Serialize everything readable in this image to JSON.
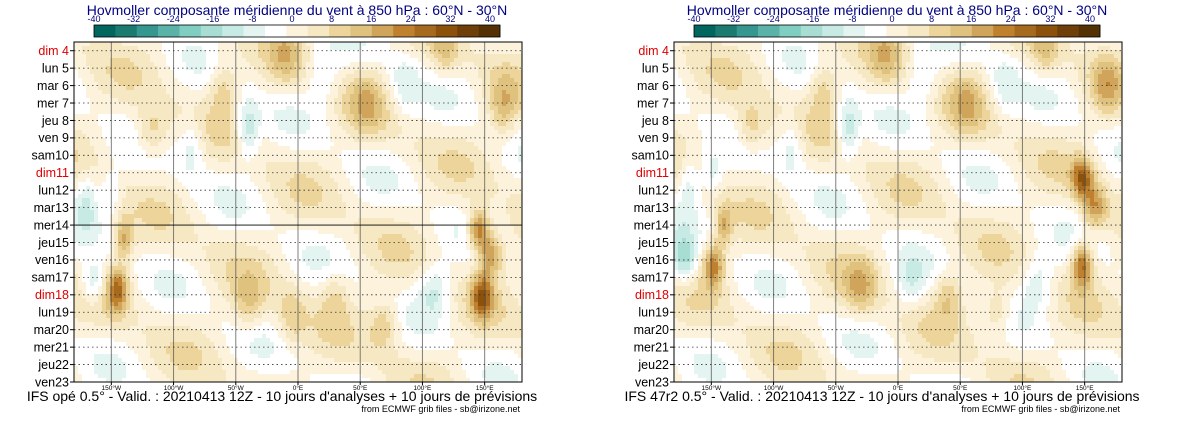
{
  "chart_data": [
    {
      "type": "heatmap",
      "title": "Hovmoller composante méridienne du vent à 850 hPa : 60°N - 30°N",
      "colorbar_ticks": [
        -40,
        -32,
        -24,
        -16,
        -8,
        0,
        8,
        16,
        24,
        32,
        40
      ],
      "colorbar_colors": [
        "#01665e",
        "#1b7b70",
        "#35978f",
        "#5ab2a8",
        "#80cdc1",
        "#a8ddd3",
        "#c7eae5",
        "#e4f4f1",
        "#ffffff",
        "#fdf3dc",
        "#f6e8c3",
        "#ecd49a",
        "#dfc27d",
        "#d0a45a",
        "#bf812d",
        "#a66a1f",
        "#8c510a",
        "#6e3f08",
        "#543005"
      ],
      "y_labels": [
        "dim 4",
        "lun 5",
        "mar 6",
        "mer 7",
        "jeu 8",
        "ven 9",
        "sam10",
        "dim11",
        "lun12",
        "mar13",
        "mer14",
        "jeu15",
        "ven16",
        "sam17",
        "dim18",
        "lun19",
        "mar20",
        "mer21",
        "jeu22",
        "ven23"
      ],
      "y_red_labels": [
        "dim 4",
        "dim11",
        "dim18"
      ],
      "x_ticks": [
        "150°W",
        "100°W",
        "50°W",
        "0°E",
        "50°E",
        "100°E",
        "150°E"
      ],
      "x_tick_lon": [
        -150,
        -100,
        -50,
        0,
        50,
        100,
        150
      ],
      "x_range": [
        -180,
        180
      ],
      "analysis_forecast_split": "mer14",
      "footer": "IFS opé 0.5° - Valid. : 20210413 12Z - 10 jours d'analyses + 10 jours de prévisions",
      "credit": "from ECMWF grib files - sb@irizone.net",
      "features": [
        {
          "type": "blob",
          "lon": -165,
          "day": 17.8,
          "sl": 7,
          "sd": 0.9,
          "v": -14
        },
        {
          "type": "blob",
          "lon": -145,
          "day": 18.2,
          "sl": 6,
          "sd": 0.9,
          "v": 22
        },
        {
          "type": "blob",
          "lon": -140,
          "day": 15.3,
          "sl": 5,
          "sd": 0.8,
          "v": 16
        },
        {
          "type": "blob",
          "lon": -150,
          "day": 12.5,
          "sl": 6,
          "sd": 0.8,
          "v": -8
        },
        {
          "type": "blob",
          "lon": -118,
          "day": 9.2,
          "sl": 9,
          "sd": 1.0,
          "v": 12
        },
        {
          "type": "blob",
          "lon": -85,
          "day": 10.0,
          "sl": 7,
          "sd": 1.2,
          "v": -9
        },
        {
          "type": "blob",
          "lon": -60,
          "day": 6.5,
          "sl": 8,
          "sd": 1.2,
          "v": 10
        },
        {
          "type": "blob",
          "lon": -40,
          "day": 9.0,
          "sl": 6,
          "sd": 1.2,
          "v": -14
        },
        {
          "type": "blob",
          "lon": -10,
          "day": 4.8,
          "sl": 9,
          "sd": 1.3,
          "v": 9
        },
        {
          "type": "blob",
          "lon": 20,
          "day": 6.0,
          "sl": 9,
          "sd": 1.2,
          "v": -7
        },
        {
          "type": "blob",
          "lon": 55,
          "day": 7.5,
          "sl": 10,
          "sd": 1.3,
          "v": 10
        },
        {
          "type": "blob",
          "lon": 85,
          "day": 6.5,
          "sl": 8,
          "sd": 1.2,
          "v": -8
        },
        {
          "type": "blob",
          "lon": 118,
          "day": 4.5,
          "sl": 8,
          "sd": 1.0,
          "v": 10
        },
        {
          "type": "blob",
          "lon": -40,
          "day": 19.0,
          "sl": 9,
          "sd": 1.1,
          "v": 10
        },
        {
          "type": "blob",
          "lon": -5,
          "day": 19.8,
          "sl": 8,
          "sd": 1.1,
          "v": 9
        },
        {
          "type": "blob",
          "lon": 30,
          "day": 18.5,
          "sl": 8,
          "sd": 1.0,
          "v": 8
        },
        {
          "type": "blob",
          "lon": 70,
          "day": 20.2,
          "sl": 9,
          "sd": 1.0,
          "v": 12
        },
        {
          "type": "blob",
          "lon": 110,
          "day": 18.2,
          "sl": 9,
          "sd": 1.1,
          "v": -11
        },
        {
          "type": "blob",
          "lon": 145,
          "day": 14.8,
          "sl": 6,
          "sd": 0.8,
          "v": 26
        },
        {
          "type": "blob",
          "lon": 155,
          "day": 16.2,
          "sl": 7,
          "sd": 0.9,
          "v": 20
        },
        {
          "type": "blob",
          "lon": 148,
          "day": 18.6,
          "sl": 6,
          "sd": 0.9,
          "v": 24
        },
        {
          "type": "blob",
          "lon": 165,
          "day": 7.8,
          "sl": 8,
          "sd": 1.2,
          "v": 12
        },
        {
          "type": "blob",
          "lon": -170,
          "day": 13.0,
          "sl": 6,
          "sd": 1.2,
          "v": -9
        },
        {
          "type": "wave",
          "k": 24,
          "w": -0.9,
          "a": 5
        },
        {
          "type": "wave",
          "k": 17,
          "w": 0.6,
          "a": 3
        }
      ]
    },
    {
      "type": "heatmap",
      "title": "Hovmoller composante méridienne du vent à 850 hPa : 60°N - 30°N",
      "colorbar_ticks": [
        -40,
        -32,
        -24,
        -16,
        -8,
        0,
        8,
        16,
        24,
        32,
        40
      ],
      "colorbar_colors": [
        "#01665e",
        "#1b7b70",
        "#35978f",
        "#5ab2a8",
        "#80cdc1",
        "#a8ddd3",
        "#c7eae5",
        "#e4f4f1",
        "#ffffff",
        "#fdf3dc",
        "#f6e8c3",
        "#ecd49a",
        "#dfc27d",
        "#d0a45a",
        "#bf812d",
        "#a66a1f",
        "#8c510a",
        "#6e3f08",
        "#543005"
      ],
      "y_labels": [
        "dim 4",
        "lun 5",
        "mar 6",
        "mer 7",
        "jeu 8",
        "ven 9",
        "sam10",
        "dim11",
        "lun12",
        "mar13",
        "mer14",
        "jeu15",
        "ven16",
        "sam17",
        "dim18",
        "lun19",
        "mar20",
        "mer21",
        "jeu22",
        "ven23"
      ],
      "y_red_labels": [
        "dim 4",
        "dim11",
        "dim18"
      ],
      "x_ticks": [
        "150°W",
        "100°W",
        "50°W",
        "0°E",
        "50°E",
        "100°E",
        "150°E"
      ],
      "x_tick_lon": [
        -150,
        -100,
        -50,
        0,
        50,
        100,
        150
      ],
      "x_range": [
        -180,
        180
      ],
      "analysis_forecast_split": "",
      "footer": "IFS 47r2 0.5° - Valid. : 20210413 12Z - 10 jours d'analyses + 10 jours de prévisions",
      "credit": "from ECMWF grib files - sb@irizone.net",
      "features": [
        {
          "type": "blob",
          "lon": -172,
          "day": 16.5,
          "sl": 7,
          "sd": 1.0,
          "v": -16
        },
        {
          "type": "blob",
          "lon": -148,
          "day": 16.8,
          "sl": 6,
          "sd": 0.9,
          "v": 22
        },
        {
          "type": "blob",
          "lon": -140,
          "day": 14.5,
          "sl": 5,
          "sd": 0.8,
          "v": 14
        },
        {
          "type": "blob",
          "lon": -150,
          "day": 11.5,
          "sl": 6,
          "sd": 0.8,
          "v": -8
        },
        {
          "type": "blob",
          "lon": -118,
          "day": 9.0,
          "sl": 9,
          "sd": 1.0,
          "v": 12
        },
        {
          "type": "blob",
          "lon": -85,
          "day": 10.0,
          "sl": 7,
          "sd": 1.2,
          "v": -9
        },
        {
          "type": "blob",
          "lon": -60,
          "day": 6.5,
          "sl": 8,
          "sd": 1.2,
          "v": 10
        },
        {
          "type": "blob",
          "lon": -40,
          "day": 9.0,
          "sl": 6,
          "sd": 1.2,
          "v": -14
        },
        {
          "type": "blob",
          "lon": -10,
          "day": 4.8,
          "sl": 9,
          "sd": 1.3,
          "v": 9
        },
        {
          "type": "blob",
          "lon": 20,
          "day": 6.0,
          "sl": 9,
          "sd": 1.2,
          "v": -7
        },
        {
          "type": "blob",
          "lon": 55,
          "day": 7.5,
          "sl": 10,
          "sd": 1.3,
          "v": 10
        },
        {
          "type": "blob",
          "lon": 85,
          "day": 6.5,
          "sl": 8,
          "sd": 1.2,
          "v": -8
        },
        {
          "type": "blob",
          "lon": 118,
          "day": 4.5,
          "sl": 8,
          "sd": 1.0,
          "v": 10
        },
        {
          "type": "blob",
          "lon": -30,
          "day": 18.0,
          "sl": 9,
          "sd": 1.1,
          "v": 12
        },
        {
          "type": "blob",
          "lon": 10,
          "day": 17.8,
          "sl": 8,
          "sd": 1.0,
          "v": -8
        },
        {
          "type": "blob",
          "lon": 40,
          "day": 18.5,
          "sl": 8,
          "sd": 1.0,
          "v": 11
        },
        {
          "type": "blob",
          "lon": 80,
          "day": 19.5,
          "sl": 9,
          "sd": 1.0,
          "v": 10
        },
        {
          "type": "blob",
          "lon": 112,
          "day": 17.8,
          "sl": 9,
          "sd": 1.1,
          "v": -10
        },
        {
          "type": "blob",
          "lon": 148,
          "day": 11.8,
          "sl": 6,
          "sd": 0.8,
          "v": 24
        },
        {
          "type": "blob",
          "lon": 158,
          "day": 13.5,
          "sl": 7,
          "sd": 0.9,
          "v": 18
        },
        {
          "type": "blob",
          "lon": 148,
          "day": 16.8,
          "sl": 6,
          "sd": 0.9,
          "v": 26
        },
        {
          "type": "blob",
          "lon": 167,
          "day": 6.5,
          "sl": 8,
          "sd": 1.2,
          "v": 12
        },
        {
          "type": "blob",
          "lon": -168,
          "day": 12.0,
          "sl": 6,
          "sd": 1.2,
          "v": -9
        },
        {
          "type": "wave",
          "k": 24,
          "w": -0.9,
          "a": 5
        },
        {
          "type": "wave",
          "k": 17,
          "w": 0.6,
          "a": 3
        }
      ]
    }
  ]
}
